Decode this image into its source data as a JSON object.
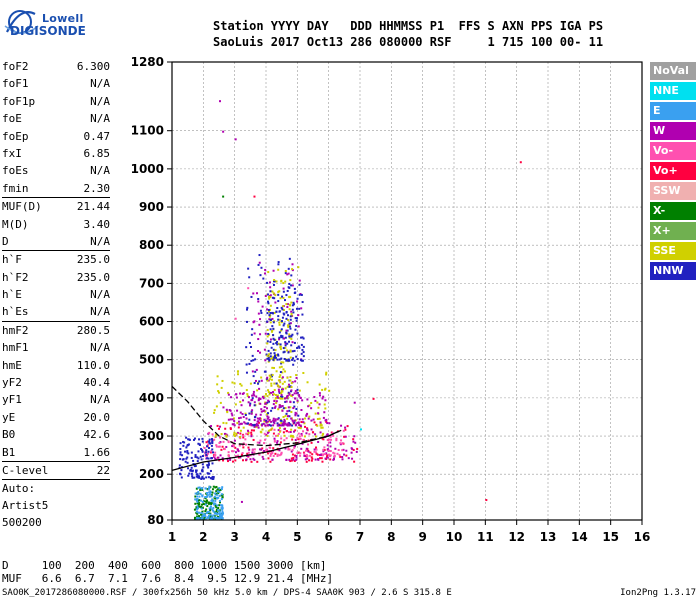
{
  "logo": {
    "line1": "Lowell",
    "line2": "DIGISONDE"
  },
  "header": {
    "line1": "Station YYYY DAY   DDD HHMMSS P1  FFS S AXN PPS IGA PS",
    "line2": "SaoLuis 2017 Oct13 286 080000 RSF     1 715 100 00- 11"
  },
  "params": [
    {
      "name": "foF2",
      "value": "6.300"
    },
    {
      "name": "foF1",
      "value": "N/A"
    },
    {
      "name": "foF1p",
      "value": "N/A"
    },
    {
      "name": "foE",
      "value": "N/A"
    },
    {
      "name": "foEp",
      "value": "0.47"
    },
    {
      "name": "fxI",
      "value": "6.85"
    },
    {
      "name": "foEs",
      "value": "N/A"
    },
    {
      "name": "fmin",
      "value": "2.30"
    },
    {
      "sep": true
    },
    {
      "name": "MUF(D)",
      "value": "21.44"
    },
    {
      "name": "M(D)",
      "value": "3.40"
    },
    {
      "name": "D",
      "value": "N/A"
    },
    {
      "sep": true
    },
    {
      "name": "h`F",
      "value": "235.0"
    },
    {
      "name": "h`F2",
      "value": "235.0"
    },
    {
      "name": "h`E",
      "value": "N/A"
    },
    {
      "name": "h`Es",
      "value": "N/A"
    },
    {
      "sep": true
    },
    {
      "name": "hmF2",
      "value": "280.5"
    },
    {
      "name": "hmF1",
      "value": "N/A"
    },
    {
      "name": "hmE",
      "value": "110.0"
    },
    {
      "name": "yF2",
      "value": "40.4"
    },
    {
      "name": "yF1",
      "value": "N/A"
    },
    {
      "name": "yE",
      "value": "20.0"
    },
    {
      "name": "B0",
      "value": "42.6"
    },
    {
      "name": "B1",
      "value": "1.66"
    },
    {
      "sep": true
    },
    {
      "name": "C-level",
      "value": "22"
    },
    {
      "sep": true
    }
  ],
  "auto": {
    "line1": "Auto:",
    "line2": "Artist5",
    "line3": "500200"
  },
  "muf_table": {
    "d_row": "D     100  200  400  600  800 1000 1500 3000 [km]",
    "muf_row": "MUF   6.6  6.7  7.1  7.6  8.4  9.5 12.9 21.4 [MHz]"
  },
  "footer": {
    "left": "SAO0K_2017286080000.RSF / 300fx256h 50 kHz 5.0 km / DPS-4 SAA0K 903 / 2.6 S 315.8 E",
    "right": "Ion2Png 1.3.17"
  },
  "legend": [
    {
      "label": "NoVal",
      "color": "#a0a0a0"
    },
    {
      "label": "NNE",
      "color": "#00e0f0"
    },
    {
      "label": "E",
      "color": "#3aa0f0"
    },
    {
      "label": "W",
      "color": "#b000b0"
    },
    {
      "label": "Vo-",
      "color": "#ff50b0"
    },
    {
      "label": "Vo+",
      "color": "#ff0040"
    },
    {
      "label": "SSW",
      "color": "#f0b0b0"
    },
    {
      "label": "X-",
      "color": "#008000"
    },
    {
      "label": "X+",
      "color": "#70b050"
    },
    {
      "label": "SSE",
      "color": "#d0d000"
    },
    {
      "label": "NNW",
      "color": "#2020c0"
    }
  ],
  "chart_data": {
    "type": "scatter",
    "xlabel": "",
    "ylabel": "",
    "xlim": [
      1,
      16
    ],
    "ylim": [
      80,
      1280
    ],
    "x_ticks": [
      1,
      2,
      3,
      4,
      5,
      6,
      7,
      8,
      9,
      10,
      11,
      12,
      13,
      14,
      15,
      16
    ],
    "y_ticks": [
      80,
      200,
      300,
      400,
      500,
      600,
      700,
      800,
      900,
      1000,
      1100,
      1280
    ],
    "grid": true,
    "traces": [
      {
        "style": "solid",
        "x": [
          1.0,
          2.0,
          3.0,
          4.0,
          5.0,
          6.0,
          6.3
        ],
        "y": [
          210,
          232,
          244,
          258,
          278,
          300,
          312
        ]
      },
      {
        "style": "dashed",
        "x": [
          1.0,
          1.5,
          2.0,
          2.5,
          3.0,
          4.0,
          5.0,
          6.0,
          6.4
        ],
        "y": [
          430,
          390,
          340,
          300,
          280,
          275,
          282,
          300,
          315
        ]
      }
    ],
    "clusters": [
      {
        "x": [
          2.0,
          6.9
        ],
        "y": [
          235,
          340
        ],
        "color": "#ff0040"
      },
      {
        "x": [
          2.0,
          6.9
        ],
        "y": [
          240,
          330
        ],
        "color": "#b000b0"
      },
      {
        "x": [
          2.0,
          6.5
        ],
        "y": [
          250,
          320
        ],
        "color": "#ff50b0"
      },
      {
        "x": [
          2.3,
          6.0
        ],
        "y": [
          300,
          480
        ],
        "color": "#d0d000"
      },
      {
        "x": [
          3.3,
          5.0
        ],
        "y": [
          330,
          780
        ],
        "color": "#2020c0"
      },
      {
        "x": [
          3.5,
          5.1
        ],
        "y": [
          330,
          760
        ],
        "color": "#b000b0"
      },
      {
        "x": [
          4.0,
          4.8
        ],
        "y": [
          400,
          740
        ],
        "color": "#d0d000"
      },
      {
        "x": [
          1.7,
          2.6
        ],
        "y": [
          85,
          170
        ],
        "color": "#008000"
      },
      {
        "x": [
          1.7,
          2.6
        ],
        "y": [
          85,
          170
        ],
        "color": "#3aa0f0"
      },
      {
        "x": [
          1.2,
          2.3
        ],
        "y": [
          190,
          300
        ],
        "color": "#2020c0"
      },
      {
        "x": [
          4.0,
          5.2
        ],
        "y": [
          500,
          700
        ],
        "color": "#2020c0"
      },
      {
        "x": [
          2.6,
          6.0
        ],
        "y": [
          330,
          420
        ],
        "color": "#b000b0"
      }
    ],
    "isolated_points": [
      {
        "x": 2.5,
        "y": 1180,
        "color": "#b000b0"
      },
      {
        "x": 2.6,
        "y": 1100,
        "color": "#b000b0"
      },
      {
        "x": 3.0,
        "y": 1080,
        "color": "#b000b0"
      },
      {
        "x": 12.1,
        "y": 1020,
        "color": "#ff0040"
      },
      {
        "x": 11.0,
        "y": 135,
        "color": "#ff0040"
      },
      {
        "x": 2.6,
        "y": 930,
        "color": "#008000"
      },
      {
        "x": 3.6,
        "y": 930,
        "color": "#ff0040"
      },
      {
        "x": 4.8,
        "y": 740,
        "color": "#d0d000"
      },
      {
        "x": 4.6,
        "y": 735,
        "color": "#d0d000"
      },
      {
        "x": 5.0,
        "y": 745,
        "color": "#d0d000"
      },
      {
        "x": 7.4,
        "y": 400,
        "color": "#ff0040"
      },
      {
        "x": 6.8,
        "y": 390,
        "color": "#b000b0"
      },
      {
        "x": 7.0,
        "y": 320,
        "color": "#00e0f0"
      },
      {
        "x": 3.4,
        "y": 690,
        "color": "#ff50b0"
      },
      {
        "x": 3.0,
        "y": 610,
        "color": "#ff50b0"
      },
      {
        "x": 3.2,
        "y": 130,
        "color": "#b000b0"
      }
    ]
  }
}
